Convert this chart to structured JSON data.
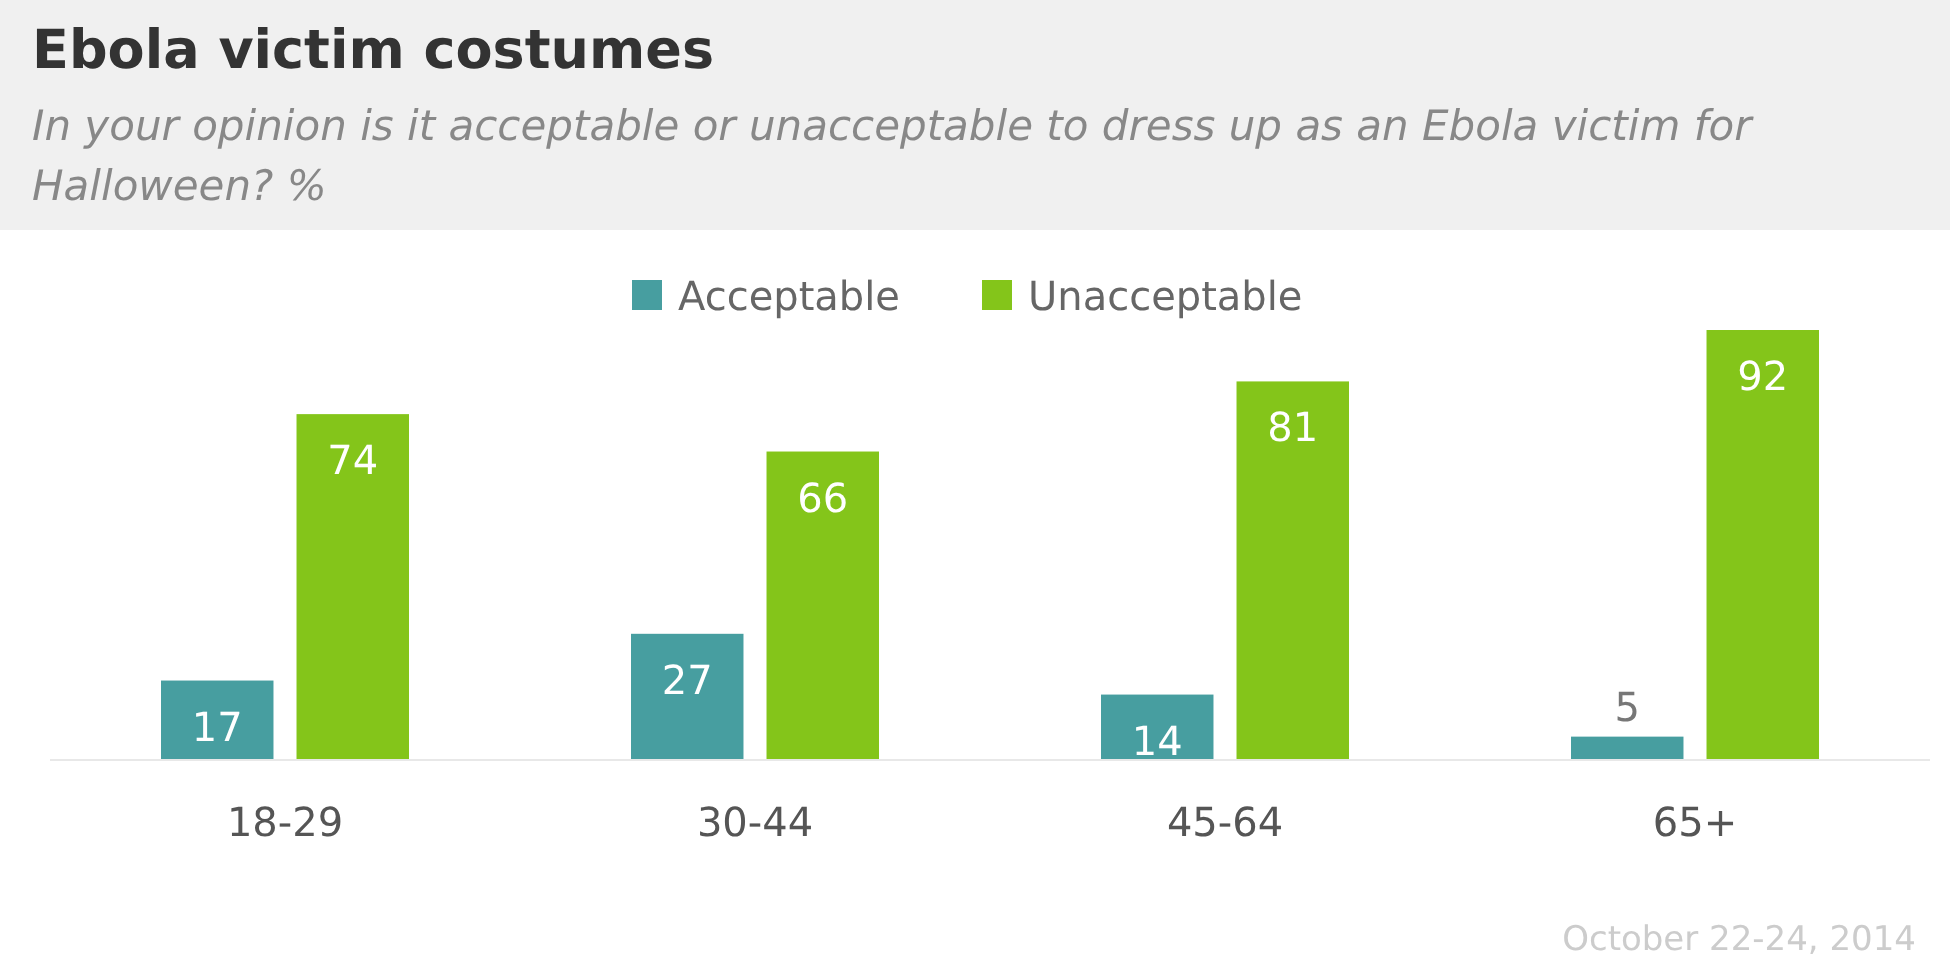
{
  "chart_data": {
    "type": "bar",
    "title": "Ebola victim costumes",
    "subtitle": "In your opinion is it acceptable or unacceptable to dress up as an Ebola victim for Halloween? %",
    "categories": [
      "18-29",
      "30-44",
      "45-64",
      "65+"
    ],
    "series": [
      {
        "name": "Acceptable",
        "color": "#479ea0",
        "values": [
          17,
          27,
          14,
          5
        ]
      },
      {
        "name": "Unacceptable",
        "color": "#84c51a",
        "values": [
          74,
          66,
          81,
          92
        ]
      }
    ],
    "relative": false,
    "data_labels": true,
    "legend": "top",
    "grid": false,
    "annotations": [
      "October 22-24, 2014"
    ]
  }
}
